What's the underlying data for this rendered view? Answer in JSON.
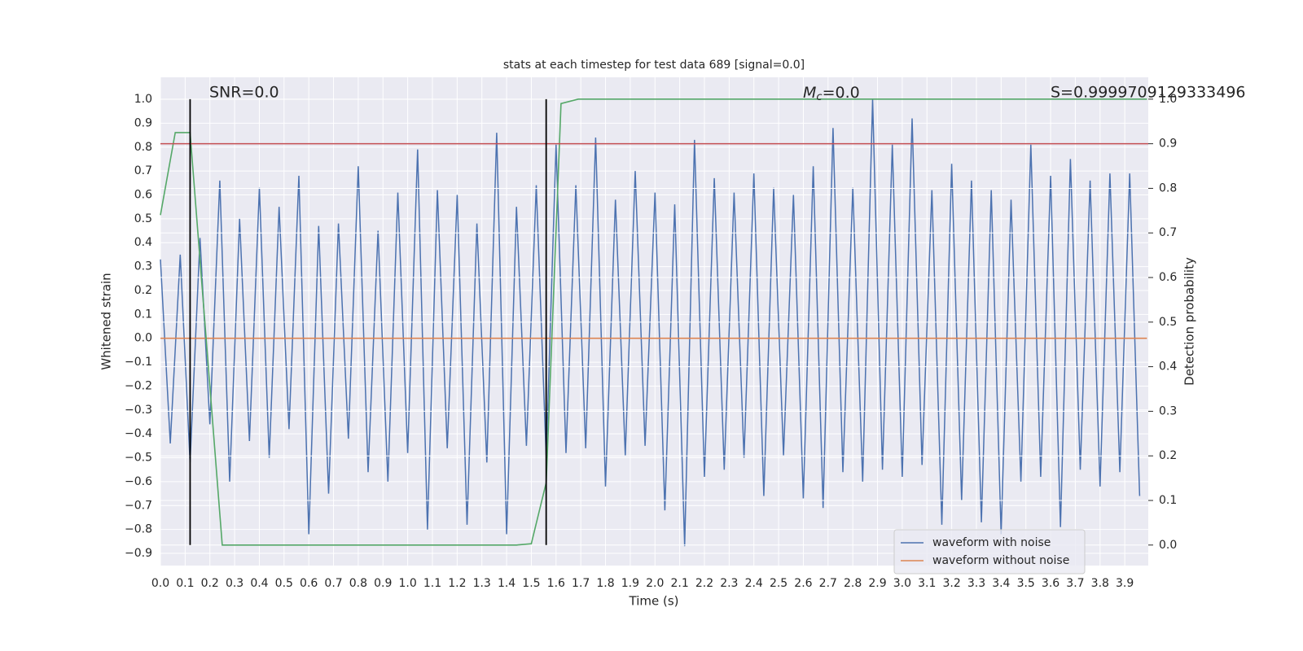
{
  "chart_data": {
    "type": "line",
    "title": "stats at each timestep for test data 689 [signal=0.0]",
    "xlabel": "Time (s)",
    "ylabel": "Whitened strain",
    "y2label": "Detection probability",
    "xlim": [
      0,
      3.995
    ],
    "ylim": [
      -0.951,
      1.092
    ],
    "y2lim": [
      -0.046,
      1.049
    ],
    "grid": true,
    "legend": "lower right",
    "xticks": [
      {
        "value": 0,
        "label": "0.0"
      },
      {
        "value": 0.1,
        "label": "0.1"
      },
      {
        "value": 0.2,
        "label": "0.2"
      },
      {
        "value": 0.3,
        "label": "0.3"
      },
      {
        "value": 0.4,
        "label": "0.4"
      },
      {
        "value": 0.5,
        "label": "0.5"
      },
      {
        "value": 0.6,
        "label": "0.6"
      },
      {
        "value": 0.7,
        "label": "0.7"
      },
      {
        "value": 0.8,
        "label": "0.8"
      },
      {
        "value": 0.9,
        "label": "0.9"
      },
      {
        "value": 1,
        "label": "1.0"
      },
      {
        "value": 1.1,
        "label": "1.1"
      },
      {
        "value": 1.2,
        "label": "1.2"
      },
      {
        "value": 1.3,
        "label": "1.3"
      },
      {
        "value": 1.4,
        "label": "1.4"
      },
      {
        "value": 1.5,
        "label": "1.5"
      },
      {
        "value": 1.6,
        "label": "1.6"
      },
      {
        "value": 1.7,
        "label": "1.7"
      },
      {
        "value": 1.8,
        "label": "1.8"
      },
      {
        "value": 1.9,
        "label": "1.9"
      },
      {
        "value": 2,
        "label": "2.0"
      },
      {
        "value": 2.1,
        "label": "2.1"
      },
      {
        "value": 2.2,
        "label": "2.2"
      },
      {
        "value": 2.3,
        "label": "2.3"
      },
      {
        "value": 2.4,
        "label": "2.4"
      },
      {
        "value": 2.5,
        "label": "2.5"
      },
      {
        "value": 2.6,
        "label": "2.6"
      },
      {
        "value": 2.7,
        "label": "2.7"
      },
      {
        "value": 2.8,
        "label": "2.8"
      },
      {
        "value": 2.9,
        "label": "2.9"
      },
      {
        "value": 3,
        "label": "3.0"
      },
      {
        "value": 3.1,
        "label": "3.1"
      },
      {
        "value": 3.2,
        "label": "3.2"
      },
      {
        "value": 3.3,
        "label": "3.3"
      },
      {
        "value": 3.4,
        "label": "3.4"
      },
      {
        "value": 3.5,
        "label": "3.5"
      },
      {
        "value": 3.6,
        "label": "3.6"
      },
      {
        "value": 3.7,
        "label": "3.7"
      },
      {
        "value": 3.8,
        "label": "3.8"
      },
      {
        "value": 3.9,
        "label": "3.9"
      }
    ],
    "yticks": [
      {
        "value": -0.9,
        "label": "−0.9"
      },
      {
        "value": -0.8,
        "label": "−0.8"
      },
      {
        "value": -0.7,
        "label": "−0.7"
      },
      {
        "value": -0.6,
        "label": "−0.6"
      },
      {
        "value": -0.5,
        "label": "−0.5"
      },
      {
        "value": -0.4,
        "label": "−0.4"
      },
      {
        "value": -0.3,
        "label": "−0.3"
      },
      {
        "value": -0.2,
        "label": "−0.2"
      },
      {
        "value": -0.1,
        "label": "−0.1"
      },
      {
        "value": 0,
        "label": "0.0"
      },
      {
        "value": 0.1,
        "label": "0.1"
      },
      {
        "value": 0.2,
        "label": "0.2"
      },
      {
        "value": 0.3,
        "label": "0.3"
      },
      {
        "value": 0.4,
        "label": "0.4"
      },
      {
        "value": 0.5,
        "label": "0.5"
      },
      {
        "value": 0.6,
        "label": "0.6"
      },
      {
        "value": 0.7,
        "label": "0.7"
      },
      {
        "value": 0.8,
        "label": "0.8"
      },
      {
        "value": 0.9,
        "label": "0.9"
      },
      {
        "value": 1,
        "label": "1.0"
      }
    ],
    "y2ticks": [
      {
        "value": 0,
        "label": "0.0"
      },
      {
        "value": 0.1,
        "label": "0.1"
      },
      {
        "value": 0.2,
        "label": "0.2"
      },
      {
        "value": 0.3,
        "label": "0.3"
      },
      {
        "value": 0.4,
        "label": "0.4"
      },
      {
        "value": 0.5,
        "label": "0.5"
      },
      {
        "value": 0.6,
        "label": "0.6"
      },
      {
        "value": 0.7,
        "label": "0.7"
      },
      {
        "value": 0.8,
        "label": "0.8"
      },
      {
        "value": 0.9,
        "label": "0.9"
      },
      {
        "value": 1,
        "label": "1.0"
      }
    ],
    "series": [
      {
        "name": "waveform with noise",
        "color": "#4c72b0",
        "x": [
          0,
          0.04,
          0.08,
          0.12,
          0.16,
          0.2,
          0.24,
          0.28,
          0.32,
          0.36,
          0.4,
          0.44,
          0.48,
          0.52,
          0.56,
          0.6,
          0.64,
          0.68,
          0.72,
          0.76,
          0.8,
          0.84,
          0.88,
          0.92,
          0.96,
          1,
          1.04,
          1.08,
          1.12,
          1.16,
          1.2,
          1.24,
          1.28,
          1.32,
          1.36,
          1.4,
          1.44,
          1.48,
          1.52,
          1.56,
          1.6,
          1.64,
          1.68,
          1.72,
          1.76,
          1.8,
          1.84,
          1.88,
          1.92,
          1.96,
          2,
          2.04,
          2.08,
          2.12,
          2.16,
          2.2,
          2.24,
          2.28,
          2.32,
          2.36,
          2.4,
          2.44,
          2.48,
          2.52,
          2.56,
          2.6,
          2.64,
          2.68,
          2.72,
          2.76,
          2.8,
          2.84,
          2.88,
          2.92,
          2.96,
          3,
          3.04,
          3.08,
          3.12,
          3.16,
          3.2,
          3.24,
          3.28,
          3.32,
          3.36,
          3.4,
          3.44,
          3.48,
          3.52,
          3.56,
          3.6,
          3.64,
          3.68,
          3.72,
          3.76,
          3.8,
          3.84,
          3.88,
          3.92,
          3.96
        ],
        "values": [
          0.33,
          -0.44,
          0.35,
          -0.52,
          0.42,
          -0.36,
          0.66,
          -0.6,
          0.5,
          -0.43,
          0.63,
          -0.5,
          0.55,
          -0.38,
          0.68,
          -0.82,
          0.47,
          -0.65,
          0.48,
          -0.42,
          0.72,
          -0.56,
          0.45,
          -0.6,
          0.61,
          -0.48,
          0.79,
          -0.8,
          0.62,
          -0.46,
          0.6,
          -0.78,
          0.48,
          -0.52,
          0.86,
          -0.82,
          0.55,
          -0.45,
          0.64,
          -0.5,
          0.81,
          -0.48,
          0.64,
          -0.46,
          0.84,
          -0.62,
          0.58,
          -0.49,
          0.7,
          -0.45,
          0.61,
          -0.72,
          0.56,
          -0.87,
          0.83,
          -0.58,
          0.67,
          -0.55,
          0.61,
          -0.5,
          0.69,
          -0.66,
          0.63,
          -0.49,
          0.6,
          -0.67,
          0.72,
          -0.71,
          0.88,
          -0.56,
          0.63,
          -0.6,
          1.0,
          -0.55,
          0.81,
          -0.58,
          0.92,
          -0.53,
          0.62,
          -0.78,
          0.73,
          -0.68,
          0.66,
          -0.77,
          0.62,
          -0.82,
          0.58,
          -0.6,
          0.81,
          -0.58,
          0.68,
          -0.79,
          0.75,
          -0.55,
          0.66,
          -0.62,
          0.69,
          -0.56,
          0.69,
          -0.66
        ]
      },
      {
        "name": "waveform without noise",
        "color": "#dd8452",
        "x": [
          0,
          3.99
        ],
        "values": [
          0,
          0
        ]
      },
      {
        "color": "#55a868",
        "axis": "y2",
        "x": [
          0,
          0.06,
          0.12,
          0.25,
          1.44,
          1.5,
          1.56,
          1.62,
          1.69,
          3.99
        ],
        "values": [
          0.74,
          0.925,
          0.925,
          0,
          0,
          0.003,
          0.14,
          0.99,
          1.0,
          1.0
        ]
      }
    ],
    "hline": {
      "y2": 0.9,
      "color": "#c44e52"
    },
    "vlines": {
      "x": [
        0.12,
        1.56
      ],
      "y2": [
        0,
        1
      ],
      "color": "#000000"
    },
    "annotations": {
      "snr": "SNR=0.0",
      "mc": {
        "symbol": "M",
        "subscript": "c",
        "text": "=0.0"
      },
      "s": "S=0.9999709129333496"
    }
  }
}
